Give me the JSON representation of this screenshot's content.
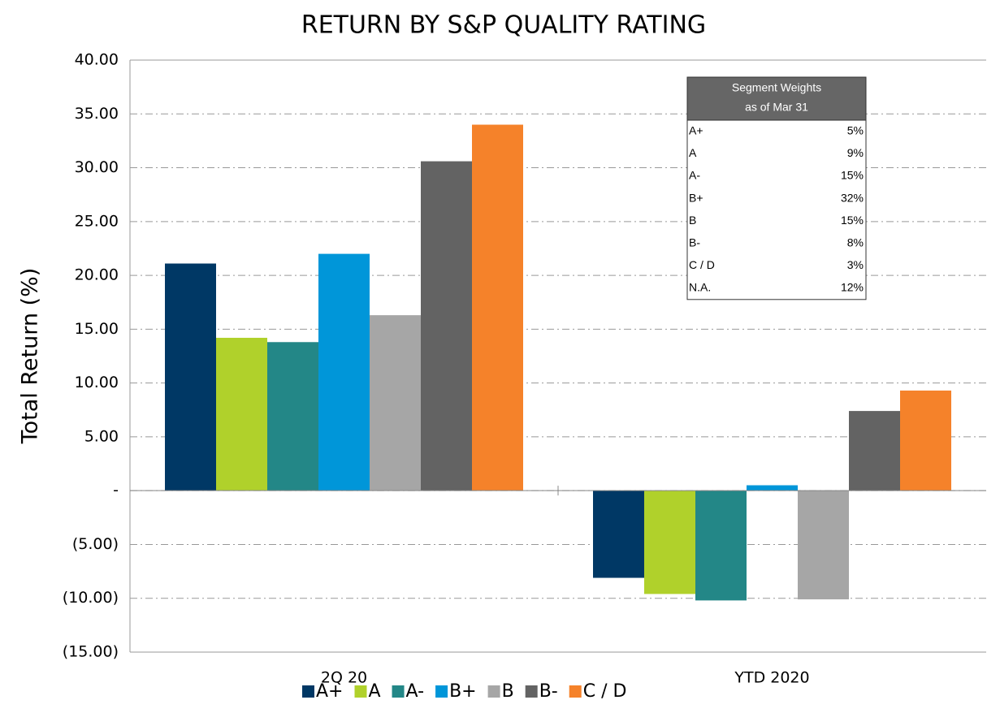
{
  "chart_data": {
    "type": "bar",
    "title": "RETURN BY S&P QUALITY RATING",
    "y_label": "Total Return (%)",
    "categories": [
      "2Q 20",
      "YTD 2020"
    ],
    "series": [
      {
        "name": "A+",
        "color": "#003865",
        "values": [
          21.1,
          -8.1
        ]
      },
      {
        "name": "A",
        "color": "#b0d12b",
        "values": [
          14.2,
          -9.6
        ]
      },
      {
        "name": "A-",
        "color": "#238787",
        "values": [
          13.8,
          -10.2
        ]
      },
      {
        "name": "B+",
        "color": "#0096d9",
        "values": [
          22.0,
          0.5
        ]
      },
      {
        "name": "B",
        "color": "#a6a6a6",
        "values": [
          16.3,
          -10.1
        ]
      },
      {
        "name": "B-",
        "color": "#636363",
        "values": [
          30.6,
          7.4
        ]
      },
      {
        "name": "C / D",
        "color": "#f5822a",
        "values": [
          34.0,
          9.3
        ]
      }
    ],
    "ylim": [
      -15,
      40
    ],
    "yticks": [
      {
        "value": -15,
        "label": "(15.00)"
      },
      {
        "value": -10,
        "label": "(10.00)"
      },
      {
        "value": -5,
        "label": "(5.00)"
      },
      {
        "value": 0,
        "label": "-"
      },
      {
        "value": 5,
        "label": "5.00"
      },
      {
        "value": 10,
        "label": "10.00"
      },
      {
        "value": 15,
        "label": "15.00"
      },
      {
        "value": 20,
        "label": "20.00"
      },
      {
        "value": 25,
        "label": "25.00"
      },
      {
        "value": 30,
        "label": "30.00"
      },
      {
        "value": 35,
        "label": "35.00"
      },
      {
        "value": 40,
        "label": "40.00"
      }
    ],
    "grid": true,
    "legend": "bottom",
    "inset_table": {
      "title": [
        "Segment Weights",
        "as of Mar 31"
      ],
      "rows": [
        [
          "A+",
          "5%"
        ],
        [
          "A",
          "9%"
        ],
        [
          "A-",
          "15%"
        ],
        [
          "B+",
          "32%"
        ],
        [
          "B",
          "15%"
        ],
        [
          "B-",
          "8%"
        ],
        [
          "C / D",
          "3%"
        ],
        [
          "N.A.",
          "12%"
        ]
      ]
    }
  }
}
